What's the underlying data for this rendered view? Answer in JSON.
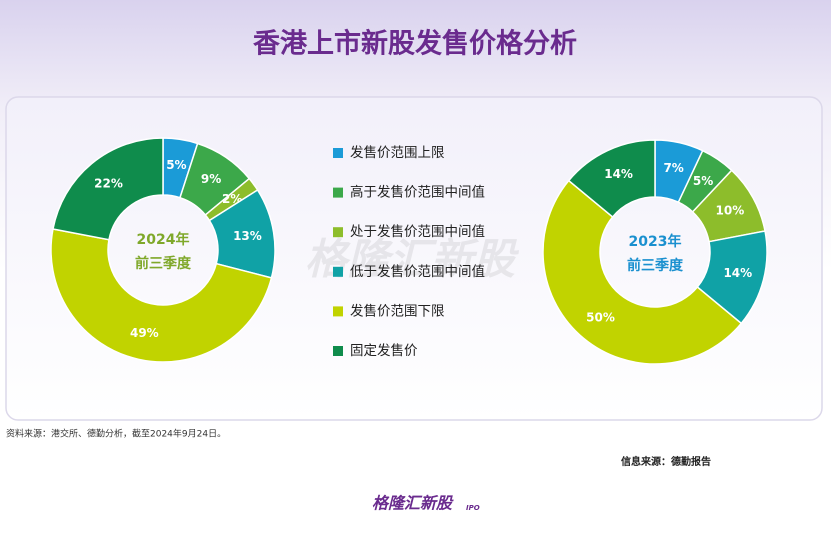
{
  "title": "香港上市新股发售价格分析",
  "legend": {
    "categories": [
      "发售价范围上限",
      "高于发售价范围中间值",
      "处于发售价范围中间值",
      "低于发售价范围中间值",
      "发售价范围下限",
      "固定发售价"
    ],
    "colors": [
      "#1b9bd7",
      "#3ca84a",
      "#8dbd2b",
      "#10a2a6",
      "#c1d300",
      "#0f8c4c"
    ]
  },
  "chart_data": [
    {
      "type": "pie",
      "center_label": [
        "2024年",
        "前三季度"
      ],
      "center_color": "#7fa82a",
      "values": [
        5,
        9,
        2,
        13,
        49,
        22
      ],
      "value_labels": [
        "5%",
        "9%",
        "2%",
        "13%",
        "49%",
        "22%"
      ]
    },
    {
      "type": "pie",
      "center_label": [
        "2023年",
        "前三季度"
      ],
      "center_color": "#1a90cf",
      "values": [
        7,
        5,
        10,
        14,
        50,
        14
      ],
      "value_labels": [
        "7%",
        "5%",
        "10%",
        "14%",
        "50%",
        "14%"
      ]
    }
  ],
  "watermark": "格隆汇新股",
  "source_note": "资料来源：港交所、德勤分析，截至2024年9月24日。",
  "info_source": "信息来源：德勤报告",
  "logo": {
    "name": "格隆汇新股",
    "tag": "IPO"
  }
}
